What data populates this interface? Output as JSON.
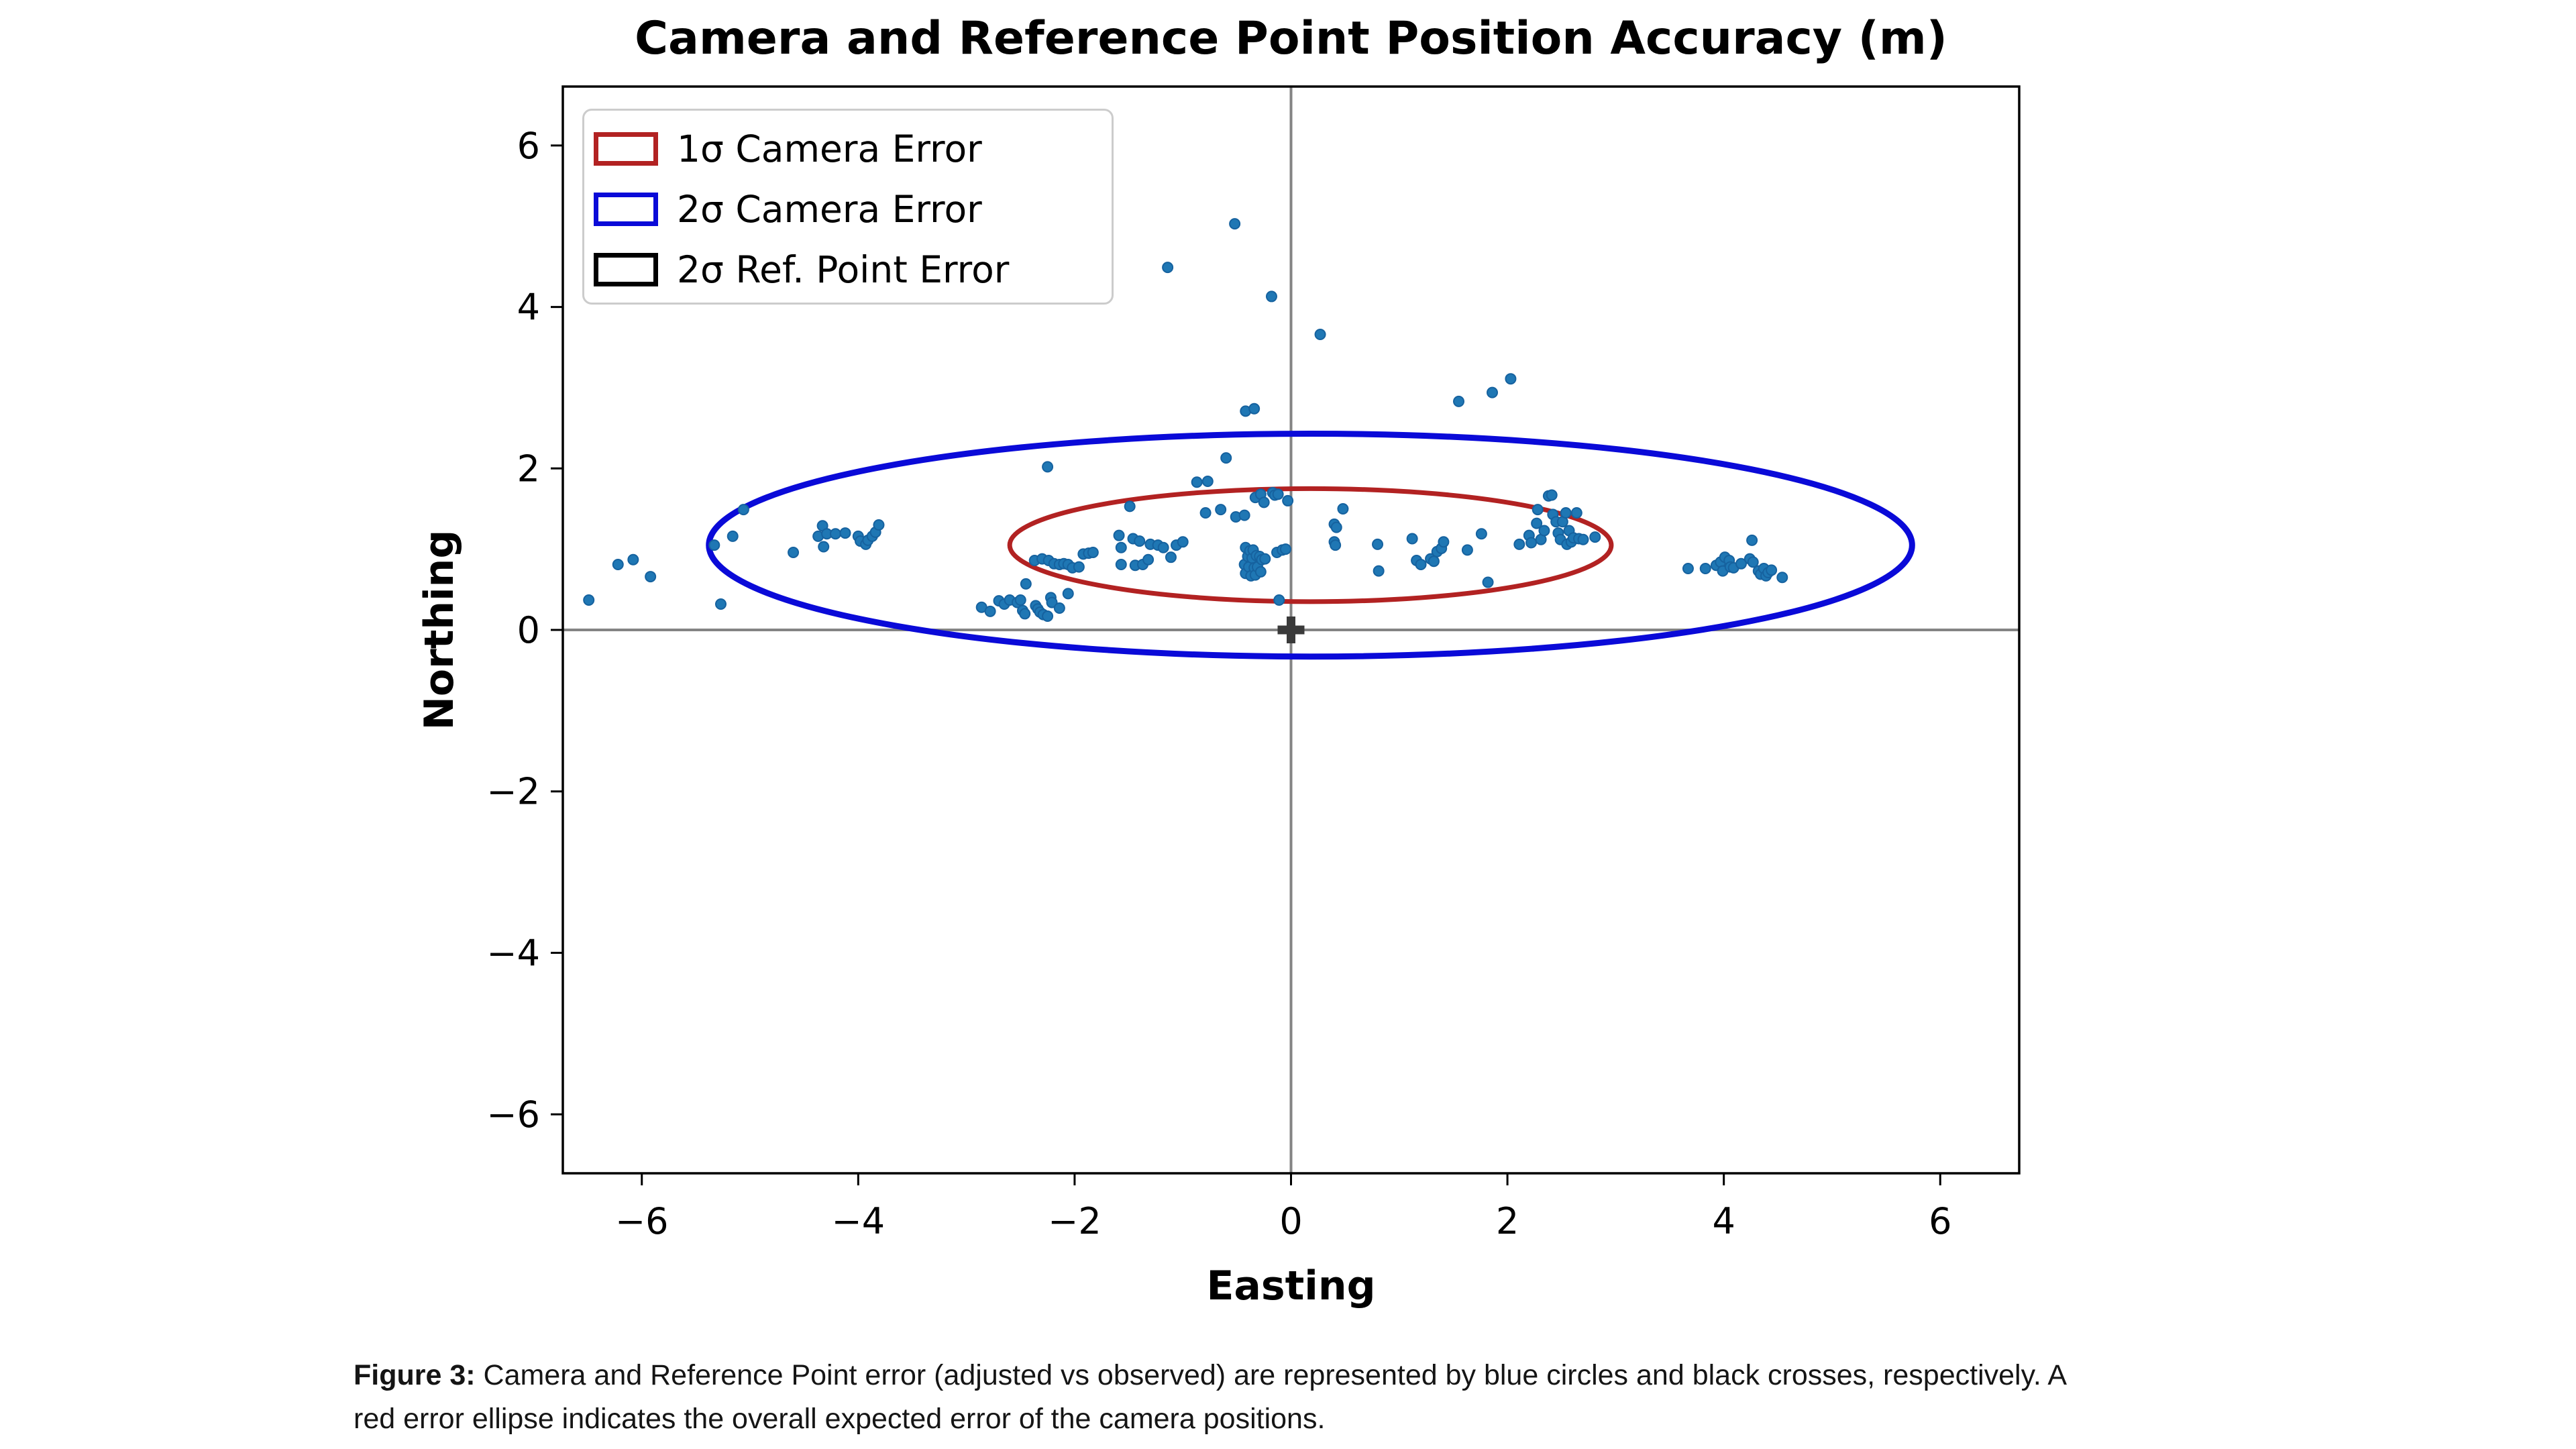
{
  "figure": {
    "title": "Camera and Reference Point Position Accuracy (m)",
    "xlabel": "Easting",
    "ylabel": "Northing"
  },
  "legend": {
    "items": [
      {
        "label": "1σ Camera Error",
        "color": "#b22222"
      },
      {
        "label": "2σ Camera Error",
        "color": "#0a0ad8"
      },
      {
        "label": "2σ Ref. Point Error",
        "color": "#000000"
      }
    ]
  },
  "caption": {
    "label": "Figure 3:",
    "line1": "Camera and Reference Point error (adjusted vs observed) are represented by blue circles and black crosses, respectively. A",
    "line2": "red error ellipse indicates the overall expected error of the camera positions."
  },
  "chart_data": {
    "type": "scatter",
    "title": "Camera and Reference Point Position Accuracy (m)",
    "xlabel": "Easting",
    "ylabel": "Northing",
    "xlim": [
      -6.73,
      6.73
    ],
    "ylim": [
      -6.73,
      6.73
    ],
    "x_ticks": [
      -6,
      -4,
      -2,
      0,
      2,
      4,
      6
    ],
    "y_ticks": [
      -6,
      -4,
      -2,
      0,
      2,
      4,
      6
    ],
    "grid": false,
    "legend_position": "upper left",
    "point_color": "#1f77b4",
    "point_edge_color": "#16629f",
    "crosshair_color": "#848484",
    "origin_marker": {
      "x": 0,
      "y": 0,
      "type": "plus",
      "color": "#3a3a3a"
    },
    "ellipses": [
      {
        "name": "2σ Camera Error",
        "cx": 0.18,
        "cy": 1.05,
        "rx": 5.56,
        "ry": 1.38,
        "color": "#0a0ad8",
        "lw": 9
      },
      {
        "name": "1σ Camera Error",
        "cx": 0.18,
        "cy": 1.05,
        "rx": 2.78,
        "ry": 0.7,
        "color": "#b22222",
        "lw": 7
      }
    ],
    "points": [
      [
        -6.49,
        0.37
      ],
      [
        -6.22,
        0.81
      ],
      [
        -6.08,
        0.87
      ],
      [
        -5.92,
        0.66
      ],
      [
        -5.33,
        1.05
      ],
      [
        -5.27,
        0.32
      ],
      [
        -5.16,
        1.16
      ],
      [
        -5.06,
        1.49
      ],
      [
        -4.6,
        0.96
      ],
      [
        -4.37,
        1.16
      ],
      [
        -4.33,
        1.29
      ],
      [
        -4.32,
        1.03
      ],
      [
        -4.29,
        1.19
      ],
      [
        -4.21,
        1.19
      ],
      [
        -4.12,
        1.2
      ],
      [
        -4.0,
        1.16
      ],
      [
        -3.98,
        1.1
      ],
      [
        -3.93,
        1.06
      ],
      [
        -3.91,
        1.11
      ],
      [
        -3.87,
        1.16
      ],
      [
        -3.84,
        1.21
      ],
      [
        -3.81,
        1.3
      ],
      [
        -2.86,
        0.28
      ],
      [
        -2.78,
        0.23
      ],
      [
        -2.7,
        0.36
      ],
      [
        -2.65,
        0.32
      ],
      [
        -2.6,
        0.37
      ],
      [
        -2.53,
        0.34
      ],
      [
        -2.5,
        0.37
      ],
      [
        -2.48,
        0.24
      ],
      [
        -2.46,
        0.2
      ],
      [
        -2.45,
        0.57
      ],
      [
        -2.37,
        0.86
      ],
      [
        -2.36,
        0.3
      ],
      [
        -2.34,
        0.26
      ],
      [
        -2.32,
        0.22
      ],
      [
        -2.3,
        0.88
      ],
      [
        -2.29,
        0.19
      ],
      [
        -2.25,
        0.17
      ],
      [
        -2.25,
        2.02
      ],
      [
        -2.24,
        0.86
      ],
      [
        -2.22,
        0.4
      ],
      [
        -2.21,
        0.34
      ],
      [
        -2.19,
        0.82
      ],
      [
        -2.14,
        0.81
      ],
      [
        -2.14,
        0.27
      ],
      [
        -2.1,
        0.82
      ],
      [
        -2.06,
        0.81
      ],
      [
        -2.06,
        0.45
      ],
      [
        -2.02,
        0.77
      ],
      [
        -1.96,
        0.78
      ],
      [
        -1.92,
        0.94
      ],
      [
        -1.87,
        0.95
      ],
      [
        -1.83,
        0.96
      ],
      [
        -1.59,
        1.17
      ],
      [
        -1.57,
        1.02
      ],
      [
        -1.57,
        0.81
      ],
      [
        -1.49,
        1.53
      ],
      [
        -1.46,
        1.13
      ],
      [
        -1.44,
        0.8
      ],
      [
        -1.4,
        1.1
      ],
      [
        -1.37,
        0.81
      ],
      [
        -1.32,
        0.87
      ],
      [
        -1.3,
        1.06
      ],
      [
        -1.23,
        1.05
      ],
      [
        -1.18,
        1.02
      ],
      [
        -1.14,
        4.49
      ],
      [
        -1.11,
        0.9
      ],
      [
        -1.06,
        1.05
      ],
      [
        -1.0,
        1.09
      ],
      [
        -0.87,
        1.83
      ],
      [
        -0.79,
        1.45
      ],
      [
        -0.77,
        1.84
      ],
      [
        -0.65,
        1.49
      ],
      [
        -0.6,
        2.13
      ],
      [
        -0.52,
        5.03
      ],
      [
        -0.51,
        1.4
      ],
      [
        -0.43,
        1.42
      ],
      [
        -0.43,
        0.81
      ],
      [
        -0.42,
        1.02
      ],
      [
        -0.42,
        0.7
      ],
      [
        -0.42,
        2.71
      ],
      [
        -0.4,
        0.91
      ],
      [
        -0.39,
        0.78
      ],
      [
        -0.38,
        0.98
      ],
      [
        -0.37,
        0.67
      ],
      [
        -0.36,
        0.89
      ],
      [
        -0.35,
        0.99
      ],
      [
        -0.34,
        0.77
      ],
      [
        -0.34,
        2.74
      ],
      [
        -0.33,
        1.64
      ],
      [
        -0.33,
        0.68
      ],
      [
        -0.32,
        0.92
      ],
      [
        -0.31,
        0.78
      ],
      [
        -0.29,
        0.91
      ],
      [
        -0.28,
        1.68
      ],
      [
        -0.28,
        0.72
      ],
      [
        -0.27,
        0.87
      ],
      [
        -0.25,
        1.58
      ],
      [
        -0.24,
        0.88
      ],
      [
        -0.18,
        4.13
      ],
      [
        -0.17,
        1.7
      ],
      [
        -0.15,
        1.67
      ],
      [
        -0.13,
        0.96
      ],
      [
        -0.12,
        1.68
      ],
      [
        -0.11,
        0.37
      ],
      [
        -0.08,
        0.99
      ],
      [
        -0.05,
        1.0
      ],
      [
        -0.03,
        1.6
      ],
      [
        0.27,
        3.66
      ],
      [
        0.4,
        1.31
      ],
      [
        0.4,
        1.09
      ],
      [
        0.41,
        1.05
      ],
      [
        0.42,
        1.27
      ],
      [
        0.48,
        1.5
      ],
      [
        0.8,
        1.06
      ],
      [
        0.81,
        0.73
      ],
      [
        1.12,
        1.13
      ],
      [
        1.16,
        0.86
      ],
      [
        1.2,
        0.81
      ],
      [
        1.29,
        0.88
      ],
      [
        1.32,
        0.85
      ],
      [
        1.35,
        0.97
      ],
      [
        1.39,
        1.01
      ],
      [
        1.41,
        1.09
      ],
      [
        1.55,
        2.83
      ],
      [
        1.63,
        0.99
      ],
      [
        1.76,
        1.19
      ],
      [
        1.82,
        0.59
      ],
      [
        1.86,
        2.94
      ],
      [
        2.03,
        3.11
      ],
      [
        2.11,
        1.06
      ],
      [
        2.2,
        1.17
      ],
      [
        2.22,
        1.08
      ],
      [
        2.27,
        1.32
      ],
      [
        2.28,
        1.49
      ],
      [
        2.31,
        1.12
      ],
      [
        2.34,
        1.23
      ],
      [
        2.38,
        1.66
      ],
      [
        2.41,
        1.67
      ],
      [
        2.42,
        1.43
      ],
      [
        2.45,
        1.34
      ],
      [
        2.47,
        1.2
      ],
      [
        2.49,
        1.12
      ],
      [
        2.51,
        1.34
      ],
      [
        2.54,
        1.45
      ],
      [
        2.55,
        1.06
      ],
      [
        2.57,
        1.23
      ],
      [
        2.59,
        1.09
      ],
      [
        2.61,
        1.14
      ],
      [
        2.64,
        1.45
      ],
      [
        2.66,
        1.13
      ],
      [
        2.7,
        1.12
      ],
      [
        2.81,
        1.15
      ],
      [
        3.67,
        0.76
      ],
      [
        3.83,
        0.76
      ],
      [
        3.93,
        0.8
      ],
      [
        3.97,
        0.84
      ],
      [
        3.99,
        0.73
      ],
      [
        4.01,
        0.9
      ],
      [
        4.05,
        0.86
      ],
      [
        4.06,
        0.78
      ],
      [
        4.09,
        0.77
      ],
      [
        4.16,
        0.82
      ],
      [
        4.24,
        0.88
      ],
      [
        4.26,
        1.11
      ],
      [
        4.27,
        0.84
      ],
      [
        4.32,
        0.73
      ],
      [
        4.34,
        0.69
      ],
      [
        4.37,
        0.76
      ],
      [
        4.39,
        0.67
      ],
      [
        4.41,
        0.71
      ],
      [
        4.44,
        0.74
      ],
      [
        4.54,
        0.65
      ]
    ]
  }
}
